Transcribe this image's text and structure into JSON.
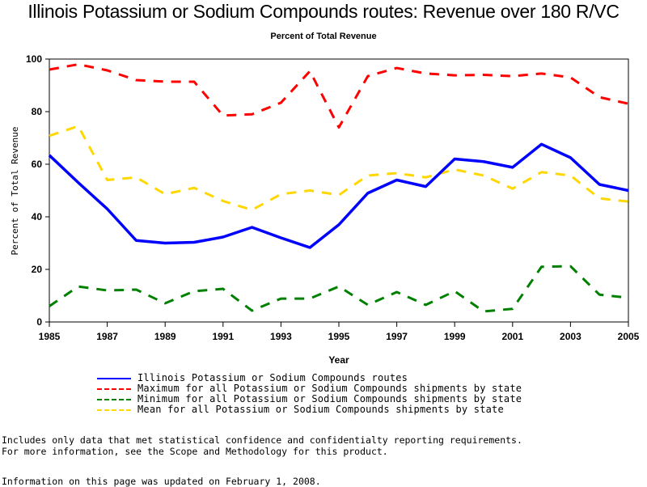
{
  "chart_data": {
    "type": "line",
    "title": "Illinois Potassium or Sodium Compounds routes: Revenue over 180 R/VC",
    "subtitle": "Percent of Total Revenue",
    "xlabel": "Year",
    "ylabel": "Percent of Total Revenue",
    "xlim": [
      1985,
      2005
    ],
    "ylim": [
      0,
      100
    ],
    "grid": false,
    "x_ticks": [
      "1985",
      "1987",
      "1989",
      "1991",
      "1993",
      "1995",
      "1997",
      "1999",
      "2001",
      "2003",
      "2005"
    ],
    "y_ticks": [
      "0",
      "20",
      "40",
      "60",
      "80",
      "100"
    ],
    "x": [
      1985,
      1986,
      1987,
      1988,
      1989,
      1990,
      1991,
      1992,
      1993,
      1994,
      1995,
      1996,
      1997,
      1998,
      1999,
      2000,
      2001,
      2002,
      2003,
      2004,
      2005
    ],
    "legend_position": "bottom",
    "series": [
      {
        "name": "Illinois Potassium or Sodium Compounds routes",
        "color": "#0000ff",
        "style": "solid",
        "values": [
          63.4,
          53,
          43,
          31,
          30,
          30.3,
          32.3,
          36,
          32,
          28.3,
          37,
          49,
          54,
          51.5,
          62,
          61,
          58.8,
          67.6,
          62.5,
          52.3,
          50
        ]
      },
      {
        "name": "Maximum for all Potassium or Sodium Compounds shipments by state",
        "color": "#ff0000",
        "style": "dashed",
        "values": [
          96,
          98,
          95.7,
          92,
          91.4,
          91.4,
          78.5,
          79,
          83.4,
          95.4,
          74,
          93.5,
          96.6,
          94.5,
          93.8,
          94,
          93.5,
          94.5,
          93,
          85.5,
          83
        ]
      },
      {
        "name": "Minimum for all Potassium or Sodium Compounds shipments by state",
        "color": "#008000",
        "style": "dashed",
        "values": [
          6,
          13.5,
          12,
          12.3,
          7.1,
          11.7,
          12.6,
          4.3,
          8.9,
          8.9,
          13.5,
          6.5,
          11.4,
          6.5,
          11.7,
          4,
          5,
          21,
          21.2,
          10.4,
          9.2
        ]
      },
      {
        "name": "Mean for all Potassium or Sodium Compounds shipments by state",
        "color": "#ffd700",
        "style": "dashed",
        "values": [
          70.8,
          74.5,
          54,
          55,
          48.6,
          51,
          46,
          42.6,
          48.6,
          50,
          48.3,
          55.7,
          56.6,
          55,
          58,
          55.7,
          50.7,
          57,
          55.7,
          47,
          45.8
        ]
      }
    ]
  },
  "footnotes": {
    "line1": "Includes only data that met statistical confidence and confidentialty reporting requirements.",
    "line2": "For more information, see the Scope and Methodology for this product.",
    "updated": "Information on this page was updated on February 1, 2008."
  }
}
